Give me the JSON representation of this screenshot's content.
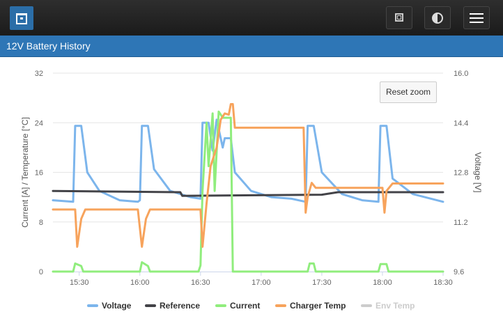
{
  "header": {
    "logo_icon": "app-logo-icon",
    "buttons": [
      {
        "name": "window-icon"
      },
      {
        "name": "contrast-icon"
      },
      {
        "name": "menu-icon"
      }
    ]
  },
  "page": {
    "title": "12V Battery History"
  },
  "chart_data": {
    "type": "line",
    "title": "",
    "xlabel": "",
    "ylabel_left": "Current [A] / Temperature [°C]",
    "ylabel_right": "Voltage [V]",
    "x_ticks": [
      "15:30",
      "16:00",
      "16:30",
      "17:00",
      "17:30",
      "18:00",
      "18:30"
    ],
    "y_left_ticks": [
      "0",
      "8",
      "16",
      "24",
      "32"
    ],
    "y_right_ticks": [
      "9.6",
      "11.2",
      "12.8",
      "14.4",
      "16.0"
    ],
    "ylim_left": [
      0,
      32
    ],
    "ylim_right": [
      9.6,
      16.0
    ],
    "xlim": [
      "15:17",
      "18:30"
    ],
    "grid": true,
    "legend_position": "bottom",
    "reset_zoom_label": "Reset zoom",
    "series": [
      {
        "name": "Voltage",
        "axis": "right",
        "color": "#7cb5ec",
        "visible": true,
        "points": [
          [
            "15:17",
            11.9
          ],
          [
            "15:27",
            11.85
          ],
          [
            "15:28",
            14.3
          ],
          [
            "15:31",
            14.3
          ],
          [
            "15:34",
            12.8
          ],
          [
            "15:40",
            12.2
          ],
          [
            "15:50",
            11.9
          ],
          [
            "15:59",
            11.85
          ],
          [
            "16:00",
            11.9
          ],
          [
            "16:01",
            14.3
          ],
          [
            "16:04",
            14.3
          ],
          [
            "16:07",
            12.9
          ],
          [
            "16:15",
            12.2
          ],
          [
            "16:25",
            12.0
          ],
          [
            "16:30",
            11.95
          ],
          [
            "16:31",
            14.4
          ],
          [
            "16:34",
            14.4
          ],
          [
            "16:36",
            13.5
          ],
          [
            "16:38",
            14.5
          ],
          [
            "16:40",
            13.9
          ],
          [
            "16:41",
            13.6
          ],
          [
            "16:42",
            13.9
          ],
          [
            "16:45",
            13.9
          ],
          [
            "16:47",
            12.8
          ],
          [
            "16:55",
            12.2
          ],
          [
            "17:05",
            12.0
          ],
          [
            "17:15",
            11.95
          ],
          [
            "17:22",
            11.85
          ],
          [
            "17:23",
            14.3
          ],
          [
            "17:26",
            14.3
          ],
          [
            "17:30",
            12.8
          ],
          [
            "17:40",
            12.1
          ],
          [
            "17:50",
            11.9
          ],
          [
            "17:58",
            11.85
          ],
          [
            "17:59",
            14.3
          ],
          [
            "18:02",
            14.3
          ],
          [
            "18:05",
            12.6
          ],
          [
            "18:15",
            12.1
          ],
          [
            "18:30",
            11.85
          ]
        ]
      },
      {
        "name": "Reference",
        "axis": "left",
        "color": "#434348",
        "visible": true,
        "points": [
          [
            "15:17",
            13
          ],
          [
            "16:20",
            12.8
          ],
          [
            "16:21",
            12.2
          ],
          [
            "17:30",
            12.4
          ],
          [
            "17:38",
            12.8
          ],
          [
            "18:30",
            12.8
          ]
        ]
      },
      {
        "name": "Current",
        "axis": "left",
        "color": "#90ed7d",
        "visible": true,
        "points": [
          [
            "15:17",
            0
          ],
          [
            "15:27",
            0
          ],
          [
            "15:28",
            1.3
          ],
          [
            "15:31",
            0.9
          ],
          [
            "15:32",
            0
          ],
          [
            "16:00",
            0
          ],
          [
            "16:01",
            1.5
          ],
          [
            "16:04",
            0.9
          ],
          [
            "16:05",
            0
          ],
          [
            "16:29",
            0
          ],
          [
            "16:30",
            1
          ],
          [
            "16:31",
            13
          ],
          [
            "16:33",
            24
          ],
          [
            "16:34",
            17
          ],
          [
            "16:36",
            25.5
          ],
          [
            "16:37",
            13
          ],
          [
            "16:39",
            25.8
          ],
          [
            "16:41",
            24.8
          ],
          [
            "16:45",
            24.8
          ],
          [
            "16:46",
            0
          ],
          [
            "17:23",
            0
          ],
          [
            "17:24",
            1.3
          ],
          [
            "17:26",
            1.3
          ],
          [
            "17:27",
            0
          ],
          [
            "17:58",
            0
          ],
          [
            "17:59",
            1.2
          ],
          [
            "18:02",
            1.2
          ],
          [
            "18:03",
            0
          ],
          [
            "18:30",
            0
          ]
        ]
      },
      {
        "name": "Charger Temp",
        "axis": "left",
        "color": "#f7a35c",
        "visible": true,
        "points": [
          [
            "15:17",
            10
          ],
          [
            "15:28",
            10
          ],
          [
            "15:29",
            4
          ],
          [
            "15:31",
            8.5
          ],
          [
            "15:33",
            10
          ],
          [
            "15:59",
            10
          ],
          [
            "16:01",
            4
          ],
          [
            "16:03",
            8.5
          ],
          [
            "16:05",
            10
          ],
          [
            "16:30",
            10
          ],
          [
            "16:31",
            4
          ],
          [
            "16:33",
            11
          ],
          [
            "16:35",
            17
          ],
          [
            "16:38",
            20
          ],
          [
            "16:40",
            24.5
          ],
          [
            "16:42",
            25.5
          ],
          [
            "16:44",
            25.3
          ],
          [
            "16:45",
            27
          ],
          [
            "16:46",
            27
          ],
          [
            "16:47",
            23.2
          ],
          [
            "17:21",
            23.2
          ],
          [
            "17:22",
            9.5
          ],
          [
            "17:23",
            12
          ],
          [
            "17:25",
            14.3
          ],
          [
            "17:27",
            13.5
          ],
          [
            "18:00",
            13.5
          ],
          [
            "18:01",
            9.5
          ],
          [
            "18:02",
            13
          ],
          [
            "18:05",
            14.2
          ],
          [
            "18:30",
            14.2
          ]
        ]
      },
      {
        "name": "Env Temp",
        "axis": "left",
        "color": "#cccccc",
        "visible": false,
        "points": []
      }
    ]
  }
}
